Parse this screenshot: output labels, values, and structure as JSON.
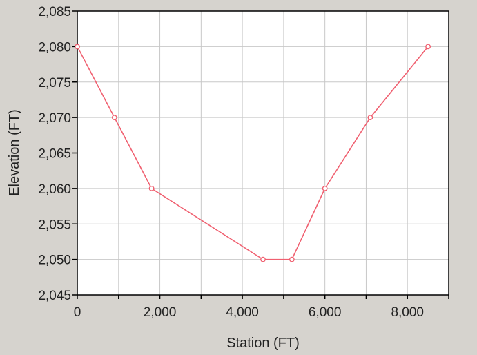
{
  "chart_data": {
    "type": "line",
    "title": "",
    "xlabel": "Station (FT)",
    "ylabel": "Elevation (FT)",
    "xlim": [
      0,
      9000
    ],
    "ylim": [
      2045,
      2085
    ],
    "x_ticks": [
      {
        "value": 0,
        "label": "0"
      },
      {
        "value": 2000,
        "label": "2,000"
      },
      {
        "value": 4000,
        "label": "4,000"
      },
      {
        "value": 6000,
        "label": "6,000"
      },
      {
        "value": 8000,
        "label": "8,000"
      }
    ],
    "y_ticks": [
      {
        "value": 2045,
        "label": "2,045"
      },
      {
        "value": 2050,
        "label": "2,050"
      },
      {
        "value": 2055,
        "label": "2,055"
      },
      {
        "value": 2060,
        "label": "2,060"
      },
      {
        "value": 2065,
        "label": "2,065"
      },
      {
        "value": 2070,
        "label": "2,070"
      },
      {
        "value": 2075,
        "label": "2,075"
      },
      {
        "value": 2080,
        "label": "2,080"
      },
      {
        "value": 2085,
        "label": "2,085"
      }
    ],
    "grid": true,
    "series": [
      {
        "color": "#f06070",
        "marker": "circle",
        "points": [
          {
            "x": 0,
            "y": 2080
          },
          {
            "x": 900,
            "y": 2070
          },
          {
            "x": 1800,
            "y": 2060
          },
          {
            "x": 4500,
            "y": 2050
          },
          {
            "x": 5200,
            "y": 2050
          },
          {
            "x": 6000,
            "y": 2060
          },
          {
            "x": 7100,
            "y": 2070
          },
          {
            "x": 8500,
            "y": 2080
          }
        ]
      }
    ]
  }
}
